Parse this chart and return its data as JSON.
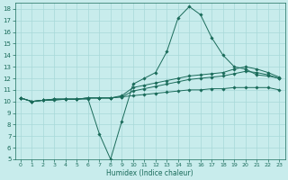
{
  "xlabel": "Humidex (Indice chaleur)",
  "x": [
    0,
    1,
    2,
    3,
    4,
    5,
    6,
    7,
    8,
    9,
    10,
    11,
    12,
    13,
    14,
    15,
    16,
    17,
    18,
    19,
    20,
    21,
    22,
    23
  ],
  "line1": [
    10.3,
    10.0,
    10.1,
    10.1,
    10.2,
    10.2,
    10.2,
    7.2,
    5.0,
    8.3,
    11.5,
    12.0,
    12.5,
    14.3,
    17.2,
    18.2,
    17.5,
    15.5,
    14.0,
    13.0,
    12.8,
    12.3,
    12.2,
    12.0
  ],
  "line2": [
    10.3,
    10.0,
    10.1,
    10.2,
    10.2,
    10.2,
    10.3,
    10.3,
    10.3,
    10.5,
    11.2,
    11.4,
    11.6,
    11.8,
    12.0,
    12.2,
    12.3,
    12.4,
    12.5,
    12.8,
    13.0,
    12.8,
    12.5,
    12.1
  ],
  "line3": [
    10.3,
    10.0,
    10.1,
    10.2,
    10.2,
    10.2,
    10.3,
    10.3,
    10.3,
    10.4,
    10.9,
    11.1,
    11.3,
    11.5,
    11.7,
    11.9,
    12.0,
    12.1,
    12.2,
    12.4,
    12.6,
    12.5,
    12.3,
    12.0
  ],
  "line4": [
    10.3,
    10.0,
    10.1,
    10.2,
    10.2,
    10.2,
    10.3,
    10.3,
    10.3,
    10.4,
    10.5,
    10.6,
    10.7,
    10.8,
    10.9,
    11.0,
    11.0,
    11.1,
    11.1,
    11.2,
    11.2,
    11.2,
    11.2,
    11.0
  ],
  "line_color": "#1a6b5a",
  "bg_color": "#c8ecec",
  "grid_color": "#a8d8d8",
  "ylim": [
    5,
    18.5
  ],
  "yticks": [
    5,
    6,
    7,
    8,
    9,
    10,
    11,
    12,
    13,
    14,
    15,
    16,
    17,
    18
  ],
  "xticks": [
    0,
    1,
    2,
    3,
    4,
    5,
    6,
    7,
    8,
    9,
    10,
    11,
    12,
    13,
    14,
    15,
    16,
    17,
    18,
    19,
    20,
    21,
    22,
    23
  ]
}
